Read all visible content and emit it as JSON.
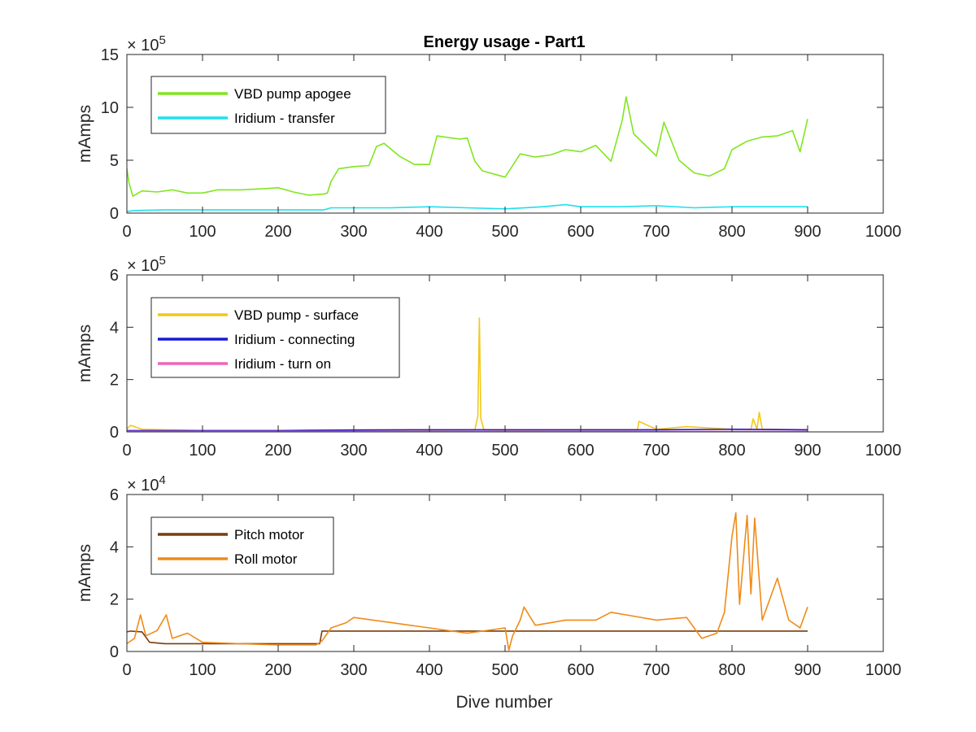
{
  "figure": {
    "title": "Energy usage - Part1",
    "xlabel": "Dive number"
  },
  "chart_data": [
    {
      "type": "line",
      "title": "Energy usage - Part1",
      "xlabel": "",
      "ylabel": "mAmps",
      "xlim": [
        0,
        1000
      ],
      "ylim": [
        0,
        15
      ],
      "y_multiplier": "×10^5",
      "exp_base": "× 10",
      "exp_power": "5",
      "xticks": [
        0,
        100,
        200,
        300,
        400,
        500,
        600,
        700,
        800,
        900,
        1000
      ],
      "yticks": [
        0,
        5,
        10,
        15
      ],
      "legend_position": "top-left",
      "grid": false,
      "series": [
        {
          "name": "VBD pump apogee",
          "color": "#80e620",
          "x": [
            0,
            3,
            8,
            20,
            40,
            60,
            80,
            100,
            120,
            150,
            180,
            200,
            220,
            240,
            260,
            265,
            270,
            280,
            300,
            320,
            330,
            340,
            360,
            380,
            400,
            410,
            420,
            440,
            450,
            460,
            470,
            500,
            510,
            520,
            540,
            560,
            580,
            600,
            620,
            640,
            655,
            660,
            670,
            700,
            710,
            730,
            750,
            770,
            790,
            800,
            820,
            840,
            860,
            880,
            890,
            900
          ],
          "y": [
            4.2,
            2.8,
            1.6,
            2.1,
            2.0,
            2.2,
            1.9,
            1.9,
            2.2,
            2.2,
            2.3,
            2.4,
            2.0,
            1.7,
            1.8,
            1.9,
            3.0,
            4.2,
            4.4,
            4.5,
            6.3,
            6.6,
            5.4,
            4.6,
            4.6,
            7.3,
            7.2,
            7.0,
            7.1,
            4.9,
            4.0,
            3.4,
            4.5,
            5.6,
            5.3,
            5.5,
            6.0,
            5.8,
            6.4,
            4.9,
            8.8,
            11.0,
            7.5,
            5.4,
            8.6,
            5.0,
            3.8,
            3.5,
            4.2,
            6.0,
            6.8,
            7.2,
            7.3,
            7.8,
            5.8,
            8.9
          ]
        },
        {
          "name": "Iridium - transfer",
          "color": "#1ee0ee",
          "x": [
            0,
            10,
            50,
            100,
            150,
            200,
            260,
            270,
            300,
            350,
            400,
            450,
            500,
            550,
            580,
            600,
            650,
            700,
            750,
            800,
            850,
            900
          ],
          "y": [
            0.15,
            0.25,
            0.3,
            0.3,
            0.3,
            0.3,
            0.3,
            0.5,
            0.5,
            0.5,
            0.6,
            0.5,
            0.4,
            0.6,
            0.8,
            0.6,
            0.6,
            0.7,
            0.5,
            0.6,
            0.6,
            0.6
          ]
        }
      ]
    },
    {
      "type": "line",
      "title": "",
      "xlabel": "",
      "ylabel": "mAmps",
      "xlim": [
        0,
        1000
      ],
      "ylim": [
        0,
        6
      ],
      "y_multiplier": "×10^5",
      "exp_base": "× 10",
      "exp_power": "5",
      "xticks": [
        0,
        100,
        200,
        300,
        400,
        500,
        600,
        700,
        800,
        900,
        1000
      ],
      "yticks": [
        0,
        2,
        4,
        6
      ],
      "legend_position": "top-left",
      "grid": false,
      "series": [
        {
          "name": "VBD pump - surface",
          "color": "#f2c81a",
          "x": [
            0,
            5,
            20,
            100,
            200,
            300,
            400,
            460,
            464,
            466,
            468,
            472,
            500,
            600,
            675,
            677,
            700,
            740,
            800,
            825,
            828,
            833,
            836,
            840,
            900
          ],
          "y": [
            0.12,
            0.25,
            0.1,
            0.05,
            0.05,
            0.07,
            0.07,
            0.08,
            0.6,
            4.35,
            0.5,
            0.08,
            0.07,
            0.08,
            0.08,
            0.4,
            0.1,
            0.2,
            0.1,
            0.1,
            0.5,
            0.1,
            0.75,
            0.1,
            0.08
          ]
        },
        {
          "name": "Iridium - connecting",
          "color": "#1a1ad6",
          "x": [
            0,
            100,
            200,
            300,
            400,
            500,
            600,
            700,
            800,
            900
          ],
          "y": [
            0.05,
            0.05,
            0.05,
            0.07,
            0.08,
            0.08,
            0.08,
            0.08,
            0.1,
            0.08
          ]
        },
        {
          "name": "Iridium - turn on",
          "color": "#ee66b8",
          "x": [
            0,
            100,
            200,
            300,
            400,
            500,
            600,
            700,
            800,
            900
          ],
          "y": [
            0.02,
            0.02,
            0.02,
            0.02,
            0.02,
            0.02,
            0.02,
            0.02,
            0.02,
            0.02
          ]
        }
      ]
    },
    {
      "type": "line",
      "title": "",
      "xlabel": "Dive number",
      "ylabel": "mAmps",
      "xlim": [
        0,
        1000
      ],
      "ylim": [
        0,
        6
      ],
      "y_multiplier": "×10^4",
      "exp_base": "× 10",
      "exp_power": "4",
      "xticks": [
        0,
        100,
        200,
        300,
        400,
        500,
        600,
        700,
        800,
        900,
        1000
      ],
      "yticks": [
        0,
        2,
        4,
        6
      ],
      "legend_position": "top-left",
      "grid": false,
      "series": [
        {
          "name": "Pitch motor",
          "color": "#7a3c0c",
          "x": [
            0,
            5,
            20,
            30,
            50,
            100,
            150,
            200,
            255,
            258,
            300,
            400,
            500,
            600,
            700,
            800,
            900
          ],
          "y": [
            0.75,
            0.78,
            0.75,
            0.35,
            0.3,
            0.3,
            0.3,
            0.3,
            0.3,
            0.78,
            0.78,
            0.78,
            0.78,
            0.78,
            0.78,
            0.78,
            0.78
          ]
        },
        {
          "name": "Roll motor",
          "color": "#f08a18",
          "x": [
            0,
            10,
            18,
            25,
            40,
            52,
            60,
            80,
            100,
            150,
            200,
            250,
            258,
            270,
            290,
            300,
            350,
            400,
            450,
            500,
            505,
            510,
            520,
            525,
            540,
            580,
            620,
            640,
            660,
            700,
            740,
            760,
            780,
            790,
            800,
            805,
            810,
            820,
            825,
            830,
            840,
            860,
            875,
            890,
            900
          ],
          "y": [
            0.3,
            0.5,
            1.4,
            0.6,
            0.8,
            1.4,
            0.5,
            0.7,
            0.35,
            0.3,
            0.25,
            0.25,
            0.4,
            0.9,
            1.1,
            1.3,
            1.1,
            0.9,
            0.7,
            0.9,
            0.05,
            0.6,
            1.2,
            1.7,
            1.0,
            1.2,
            1.2,
            1.5,
            1.4,
            1.2,
            1.3,
            0.5,
            0.7,
            1.5,
            4.4,
            5.3,
            1.8,
            5.2,
            2.2,
            5.1,
            1.2,
            2.8,
            1.2,
            0.9,
            1.7
          ]
        }
      ]
    }
  ]
}
